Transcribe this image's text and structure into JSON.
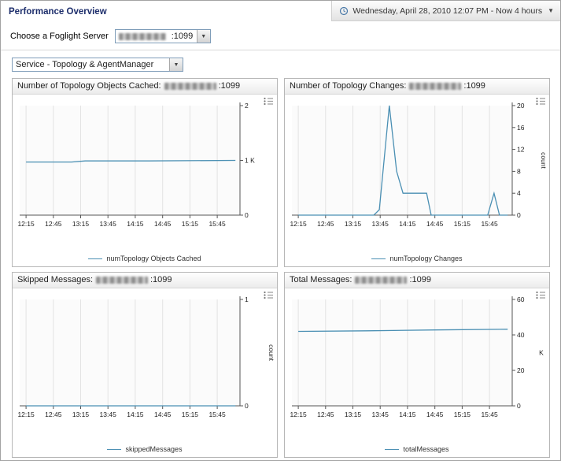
{
  "page": {
    "title": "Performance Overview",
    "time_range_label": "Wednesday, April 28, 2010 12:07 PM - Now 4 hours",
    "server_selector_label": "Choose a Foglight Server",
    "server_suffix": ":1099",
    "server_redacted": true,
    "service_selector_value": "Service - Topology & AgentManager"
  },
  "icons": {
    "caret": "▼",
    "time_caret": "▼"
  },
  "colors": {
    "line": "#4a8fb3",
    "grid": "#e3e3e3",
    "axis": "#555555",
    "plot_bg": "#fbfbfb",
    "title": "#1c2d6b"
  },
  "chart_data": [
    {
      "type": "line",
      "title": "Number of Topology Objects Cached:",
      "server_redacted": true,
      "server_suffix": ":1099",
      "legend": "numTopology Objects Cached",
      "x_range": [
        "12:08",
        "16:10"
      ],
      "xticks": [
        "12:15",
        "12:45",
        "13:15",
        "13:45",
        "14:15",
        "14:45",
        "15:15",
        "15:45"
      ],
      "ylim": [
        0,
        2
      ],
      "yticks": [
        0,
        1,
        2
      ],
      "ytick_labels": [
        "0",
        "1 K",
        "2"
      ],
      "ylabel": "",
      "ylabel_rotated": false,
      "unit": "K",
      "points": [
        [
          "12:15",
          0.97
        ],
        [
          "13:05",
          0.97
        ],
        [
          "13:20",
          0.99
        ],
        [
          "14:30",
          0.99
        ],
        [
          "16:05",
          1.0
        ]
      ]
    },
    {
      "type": "line",
      "title": "Number of Topology Changes:",
      "server_redacted": true,
      "server_suffix": ":1099",
      "legend": "numTopology Changes",
      "x_range": [
        "12:08",
        "16:10"
      ],
      "xticks": [
        "12:15",
        "12:45",
        "13:15",
        "13:45",
        "14:15",
        "14:45",
        "15:15",
        "15:45"
      ],
      "ylim": [
        0,
        20
      ],
      "yticks": [
        0,
        4,
        8,
        12,
        16,
        20
      ],
      "ytick_labels": [
        "0",
        "4",
        "8",
        "12",
        "16",
        "20"
      ],
      "ylabel": "count",
      "ylabel_rotated": true,
      "unit": "count",
      "points": [
        [
          "12:15",
          0
        ],
        [
          "13:38",
          0
        ],
        [
          "13:44",
          1
        ],
        [
          "13:55",
          20
        ],
        [
          "14:03",
          8
        ],
        [
          "14:10",
          4
        ],
        [
          "14:36",
          4
        ],
        [
          "14:41",
          0
        ],
        [
          "15:43",
          0
        ],
        [
          "15:50",
          4
        ],
        [
          "15:56",
          0
        ],
        [
          "16:05",
          0
        ]
      ]
    },
    {
      "type": "line",
      "title": "Skipped Messages:",
      "server_redacted": true,
      "server_suffix": ":1099",
      "legend": "skippedMessages",
      "x_range": [
        "12:08",
        "16:10"
      ],
      "xticks": [
        "12:15",
        "12:45",
        "13:15",
        "13:45",
        "14:15",
        "14:45",
        "15:15",
        "15:45"
      ],
      "ylim": [
        0,
        1
      ],
      "yticks": [
        0,
        1
      ],
      "ytick_labels": [
        "0",
        "1"
      ],
      "ylabel": "count",
      "ylabel_rotated": true,
      "unit": "count",
      "points": [
        [
          "12:15",
          0
        ],
        [
          "16:05",
          0
        ]
      ]
    },
    {
      "type": "line",
      "title": "Total Messages:",
      "server_redacted": true,
      "server_suffix": ":1099",
      "legend": "totalMessages",
      "x_range": [
        "12:08",
        "16:10"
      ],
      "xticks": [
        "12:15",
        "12:45",
        "13:15",
        "13:45",
        "14:15",
        "14:45",
        "15:15",
        "15:45"
      ],
      "ylim": [
        0,
        60
      ],
      "yticks": [
        0,
        20,
        40,
        60
      ],
      "ytick_labels": [
        "0",
        "20",
        "40",
        "60"
      ],
      "ylabel": "K",
      "ylabel_rotated": false,
      "unit": "K",
      "points": [
        [
          "12:15",
          42
        ],
        [
          "13:30",
          42.3
        ],
        [
          "14:45",
          42.8
        ],
        [
          "16:05",
          43.2
        ]
      ]
    }
  ]
}
